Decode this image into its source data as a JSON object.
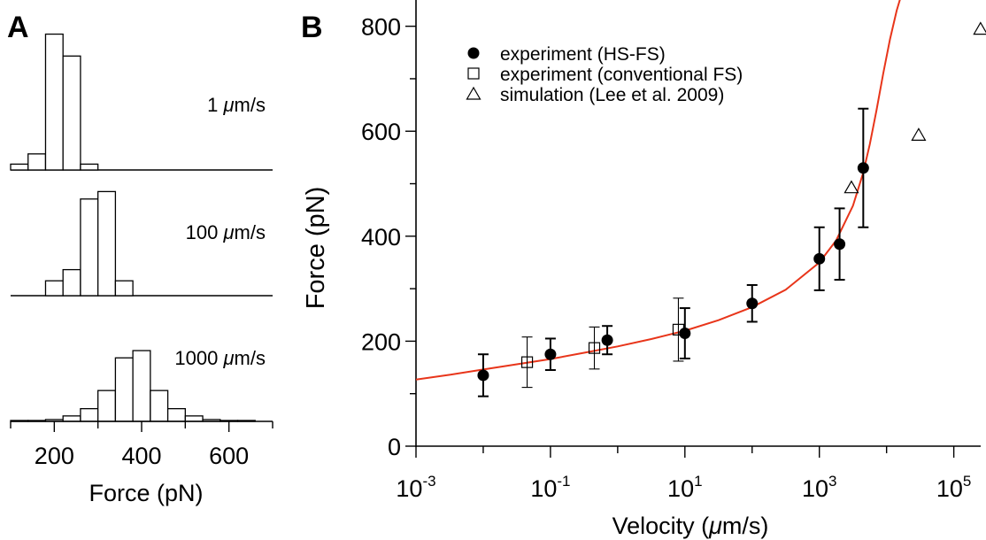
{
  "chart_data": [
    {
      "type": "bar",
      "panel_label": "A",
      "xlabel": "Force (pN)",
      "xlim": [
        100,
        700
      ],
      "xticks": [
        {
          "value": 200,
          "label": "200"
        },
        {
          "value": 400,
          "label": "400"
        },
        {
          "value": 600,
          "label": "600"
        }
      ],
      "bin_width": 40,
      "panels": [
        {
          "label_value": "1",
          "label_unit": "m/s",
          "label_mu": "μ",
          "bins": [
            120,
            160,
            200,
            240,
            280
          ],
          "values": [
            4,
            11,
            93,
            78,
            4
          ]
        },
        {
          "label_value": "100",
          "label_unit": "m/s",
          "label_mu": "μ",
          "bins": [
            200,
            240,
            280,
            320,
            360
          ],
          "values": [
            8,
            14,
            52,
            56,
            8
          ]
        },
        {
          "label_value": "1000",
          "label_unit": "m/s",
          "label_mu": "μ",
          "bins": [
            120,
            160,
            200,
            240,
            280,
            320,
            360,
            400,
            440,
            480,
            520,
            560,
            600,
            640
          ],
          "values": [
            0.5,
            0.5,
            1,
            3,
            7,
            17,
            35,
            39,
            17,
            7,
            3,
            1,
            0.5,
            0.5
          ]
        }
      ]
    },
    {
      "type": "scatter",
      "panel_label": "B",
      "xlabel_prefix": "Velocity (",
      "xlabel_mu": "μ",
      "xlabel_suffix": "m/s)",
      "ylabel": "Force (pN)",
      "xscale": "log",
      "xlim_log10": [
        -3,
        5.4
      ],
      "ylim": [
        0,
        850
      ],
      "yticks": [
        0,
        200,
        400,
        600,
        800
      ],
      "xtick_major": [
        {
          "exp": -3,
          "base": "10",
          "sup": "-3"
        },
        {
          "exp": -1,
          "base": "10",
          "sup": "-1"
        },
        {
          "exp": 1,
          "base": "10",
          "sup": "1"
        },
        {
          "exp": 3,
          "base": "10",
          "sup": "3"
        },
        {
          "exp": 5,
          "base": "10",
          "sup": "5"
        }
      ],
      "xtick_minor": [
        -2,
        0,
        2,
        4
      ],
      "legend_position": "top-left",
      "series": [
        {
          "name": "experiment (HS-FS)",
          "marker": "filled-circle",
          "x": [
            0.01,
            0.1,
            0.7,
            10,
            100,
            1000,
            2000,
            4500
          ],
          "y": [
            135,
            175,
            202,
            215,
            272,
            357,
            385,
            530
          ],
          "yerr": [
            40,
            30,
            27,
            48,
            35,
            60,
            68,
            113
          ]
        },
        {
          "name": "experiment (conventional FS)",
          "marker": "open-square",
          "x": [
            0.045,
            0.45,
            8
          ],
          "y": [
            160,
            187,
            222
          ],
          "yerr": [
            48,
            40,
            60
          ]
        },
        {
          "name": "simulation (Lee et al. 2009)",
          "marker": "open-triangle",
          "x": [
            3000,
            30000,
            250000
          ],
          "y": [
            493,
            593,
            795
          ]
        }
      ],
      "fit_curve": {
        "color": "#e8351a",
        "x_log10_start": -3,
        "x_log10_end": 4.3,
        "samples": [
          [
            -3,
            127
          ],
          [
            -2.5,
            136
          ],
          [
            -2,
            146
          ],
          [
            -1.5,
            156
          ],
          [
            -1,
            166
          ],
          [
            -0.5,
            178
          ],
          [
            0,
            190
          ],
          [
            0.5,
            204
          ],
          [
            1,
            220
          ],
          [
            1.5,
            240
          ],
          [
            2,
            265
          ],
          [
            2.5,
            298
          ],
          [
            3,
            350
          ],
          [
            3.25,
            392
          ],
          [
            3.5,
            458
          ],
          [
            3.65,
            520
          ],
          [
            3.75,
            575
          ],
          [
            3.85,
            640
          ],
          [
            3.95,
            710
          ],
          [
            4.05,
            775
          ],
          [
            4.15,
            830
          ],
          [
            4.22,
            860
          ]
        ]
      }
    }
  ]
}
